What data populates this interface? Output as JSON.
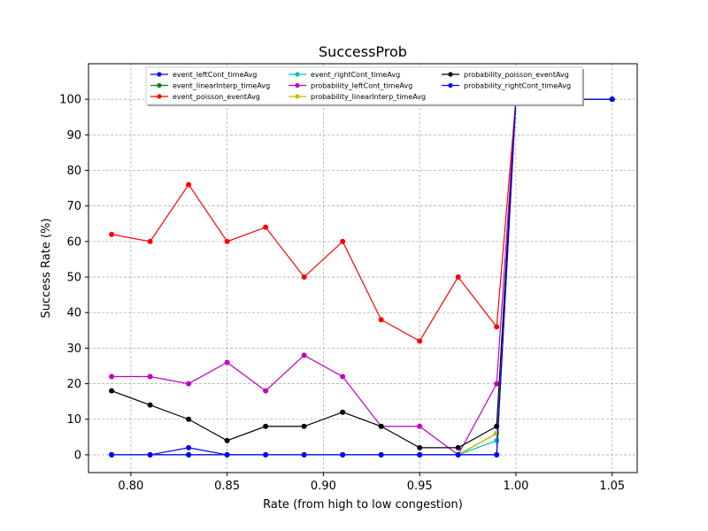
{
  "chart_data": {
    "type": "line",
    "title": "SuccessProb",
    "xlabel": "Rate (from high to low congestion)",
    "ylabel": "Success Rate (%)",
    "xlim": [
      0.778,
      1.063
    ],
    "ylim": [
      -5,
      110
    ],
    "xticks": [
      "0.80",
      "0.85",
      "0.90",
      "0.95",
      "1.00",
      "1.05"
    ],
    "xtick_values": [
      0.8,
      0.85,
      0.9,
      0.95,
      1.0,
      1.05
    ],
    "yticks": [
      "0",
      "10",
      "20",
      "30",
      "40",
      "50",
      "60",
      "70",
      "80",
      "90",
      "100"
    ],
    "ytick_values": [
      0,
      10,
      20,
      30,
      40,
      50,
      60,
      70,
      80,
      90,
      100
    ],
    "grid": true,
    "legend_position": "top-center",
    "legend_columns": 3,
    "series": [
      {
        "name": "event_leftCont_timeAvg",
        "color": "#0000ff",
        "x": [
          0.79,
          0.81,
          0.83,
          0.85,
          0.87,
          0.89,
          0.91,
          0.93,
          0.95,
          0.97,
          0.99,
          1.0,
          1.05
        ],
        "y": [
          0,
          0,
          2,
          0,
          0,
          0,
          0,
          0,
          0,
          0,
          0,
          100,
          100
        ]
      },
      {
        "name": "event_linearInterp_timeAvg",
        "color": "#008000",
        "x": [
          0.79,
          0.81,
          0.83,
          0.85,
          0.87,
          0.89,
          0.91,
          0.93,
          0.95,
          0.97,
          0.99,
          1.0,
          1.05
        ],
        "y": [
          0,
          0,
          0,
          0,
          0,
          0,
          0,
          0,
          0,
          0,
          6,
          100,
          100
        ]
      },
      {
        "name": "event_poisson_eventAvg",
        "color": "#ff0000",
        "x": [
          0.79,
          0.81,
          0.83,
          0.85,
          0.87,
          0.89,
          0.91,
          0.93,
          0.95,
          0.97,
          0.99,
          1.0,
          1.05
        ],
        "y": [
          62,
          60,
          76,
          60,
          64,
          50,
          60,
          38,
          32,
          50,
          36,
          100,
          100
        ]
      },
      {
        "name": "event_rightCont_timeAvg",
        "color": "#00bfbf",
        "x": [
          0.79,
          0.81,
          0.83,
          0.85,
          0.87,
          0.89,
          0.91,
          0.93,
          0.95,
          0.97,
          0.99,
          1.0,
          1.05
        ],
        "y": [
          0,
          0,
          0,
          0,
          0,
          0,
          0,
          0,
          0,
          0,
          4,
          100,
          100
        ]
      },
      {
        "name": "probability_leftCont_timeAvg",
        "color": "#bf00bf",
        "x": [
          0.79,
          0.81,
          0.83,
          0.85,
          0.87,
          0.89,
          0.91,
          0.93,
          0.95,
          0.97,
          0.99,
          1.0,
          1.05
        ],
        "y": [
          22,
          22,
          20,
          26,
          18,
          28,
          22,
          8,
          8,
          0,
          20,
          100,
          100
        ]
      },
      {
        "name": "probability_linearInterp_timeAvg",
        "color": "#bfbf00",
        "x": [
          0.79,
          0.81,
          0.83,
          0.85,
          0.87,
          0.89,
          0.91,
          0.93,
          0.95,
          0.97,
          0.99,
          1.0,
          1.05
        ],
        "y": [
          0,
          0,
          0,
          0,
          0,
          0,
          0,
          0,
          0,
          0,
          6,
          100,
          100
        ]
      },
      {
        "name": "probability_poisson_eventAvg",
        "color": "#000000",
        "x": [
          0.79,
          0.81,
          0.83,
          0.85,
          0.87,
          0.89,
          0.91,
          0.93,
          0.95,
          0.97,
          0.99,
          1.0,
          1.05
        ],
        "y": [
          18,
          14,
          10,
          4,
          8,
          8,
          12,
          8,
          2,
          2,
          8,
          100,
          100
        ]
      },
      {
        "name": "probability_rightCont_timeAvg",
        "color": "#0000ff",
        "x": [
          0.79,
          0.81,
          0.83,
          0.85,
          0.87,
          0.89,
          0.91,
          0.93,
          0.95,
          0.97,
          0.99,
          1.0,
          1.05
        ],
        "y": [
          0,
          0,
          0,
          0,
          0,
          0,
          0,
          0,
          0,
          0,
          0,
          100,
          100
        ]
      }
    ]
  }
}
